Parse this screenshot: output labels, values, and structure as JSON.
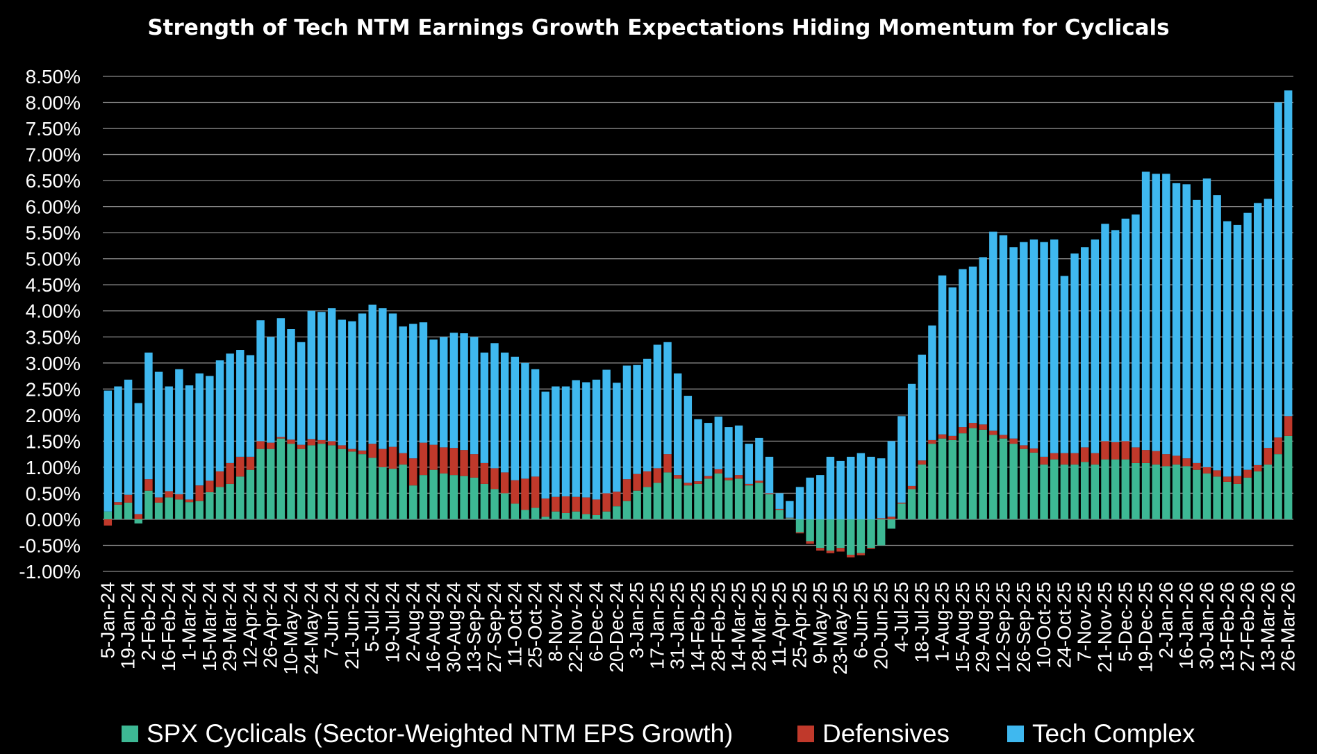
{
  "chart_data": {
    "type": "bar",
    "stacked": true,
    "title": "Strength of Tech NTM Earnings Growth Expectations Hiding Momentum for Cyclicals",
    "xlabel": "",
    "ylabel": "",
    "ylim": [
      -1.0,
      8.5
    ],
    "y_ticks": [
      "8.50%",
      "8.00%",
      "7.50%",
      "7.00%",
      "6.50%",
      "6.00%",
      "5.50%",
      "5.00%",
      "4.50%",
      "4.00%",
      "3.50%",
      "3.00%",
      "2.50%",
      "2.00%",
      "1.50%",
      "1.00%",
      "0.50%",
      "0.00%",
      "-0.50%",
      "-1.00%"
    ],
    "grid": true,
    "legend_position": "bottom",
    "x_tick_labels": [
      "5-Jan-24",
      "19-Jan-24",
      "2-Feb-24",
      "16-Feb-24",
      "1-Mar-24",
      "15-Mar-24",
      "29-Mar-24",
      "12-Apr-24",
      "26-Apr-24",
      "10-May-24",
      "24-May-24",
      "7-Jun-24",
      "21-Jun-24",
      "5-Jul-24",
      "19-Jul-24",
      "2-Aug-24",
      "16-Aug-24",
      "30-Aug-24",
      "13-Sep-24",
      "27-Sep-24",
      "11-Oct-24",
      "25-Oct-24",
      "8-Nov-24",
      "22-Nov-24",
      "6-Dec-24",
      "20-Dec-24",
      "3-Jan-25",
      "17-Jan-25",
      "31-Jan-25",
      "14-Feb-25",
      "28-Feb-25",
      "14-Mar-25",
      "28-Mar-25",
      "11-Apr-25",
      "25-Apr-25",
      "9-May-25",
      "23-May-25",
      "6-Jun-25",
      "20-Jun-25",
      "4-Jul-25",
      "18-Jul-25",
      "1-Aug-25",
      "15-Aug-25",
      "29-Aug-25",
      "12-Sep-25",
      "26-Sep-25",
      "10-Oct-25",
      "24-Oct-25",
      "7-Nov-25",
      "21-Nov-25",
      "5-Dec-25",
      "19-Dec-25",
      "2-Jan-26",
      "16-Jan-26",
      "30-Jan-26",
      "13-Feb-26",
      "27-Feb-26",
      "13-Mar-26",
      "26-Mar-26"
    ],
    "total": [
      2.35,
      2.55,
      2.68,
      2.15,
      3.2,
      2.83,
      2.55,
      2.88,
      2.57,
      2.8,
      2.75,
      3.05,
      3.18,
      3.25,
      3.15,
      3.82,
      3.5,
      3.86,
      3.65,
      3.4,
      4.0,
      3.98,
      4.05,
      3.83,
      3.8,
      3.95,
      4.12,
      4.05,
      3.95,
      3.7,
      3.75,
      3.78,
      3.45,
      3.5,
      3.58,
      3.57,
      3.5,
      3.2,
      3.38,
      3.2,
      3.12,
      3.0,
      2.88,
      2.45,
      2.55,
      2.55,
      2.67,
      2.63,
      2.68,
      2.87,
      2.62,
      2.95,
      2.96,
      3.08,
      3.35,
      3.4,
      2.8,
      2.37,
      1.92,
      1.85,
      1.97,
      1.77,
      1.8,
      1.45,
      1.56,
      1.2,
      0.5,
      0.35,
      0.6,
      0.78,
      0.85,
      1.2,
      1.12,
      1.2,
      1.27,
      1.2,
      1.17,
      1.5,
      1.98,
      2.6,
      3.16,
      3.72,
      4.68,
      4.45,
      4.8,
      4.85,
      5.03,
      5.52,
      5.45,
      5.22,
      5.32,
      5.37,
      5.32,
      5.37,
      4.67,
      5.1,
      5.22,
      5.37,
      5.67,
      5.55,
      5.77,
      5.85,
      6.67,
      6.63,
      6.63,
      6.45,
      6.43,
      6.13,
      6.57,
      6.23,
      5.72,
      5.65,
      5.88,
      6.1,
      5.95,
      8.0,
      8.23
    ],
    "series": [
      {
        "name": "SPX Cyclicals (Sector-Weighted NTM EPS Growth)",
        "color": "#3DB894",
        "values": [
          0.15,
          0.28,
          0.32,
          -0.08,
          0.55,
          0.32,
          0.42,
          0.38,
          0.33,
          0.35,
          0.52,
          0.62,
          0.68,
          0.82,
          0.95,
          1.35,
          1.35,
          1.55,
          1.45,
          1.35,
          1.42,
          1.45,
          1.42,
          1.35,
          1.3,
          1.25,
          1.18,
          1.0,
          0.97,
          1.05,
          0.65,
          0.85,
          0.95,
          0.88,
          0.85,
          0.83,
          0.8,
          0.68,
          0.58,
          0.5,
          0.3,
          0.18,
          0.22,
          0.05,
          0.15,
          0.12,
          0.15,
          0.1,
          0.08,
          0.15,
          0.25,
          0.35,
          0.55,
          0.62,
          0.7,
          0.9,
          0.78,
          0.65,
          0.68,
          0.78,
          0.88,
          0.75,
          0.78,
          0.65,
          0.7,
          0.48,
          0.18,
          0.02,
          -0.25,
          -0.42,
          -0.55,
          -0.6,
          -0.55,
          -0.68,
          -0.65,
          -0.55,
          -0.5,
          -0.18,
          0.3,
          0.58,
          1.05,
          1.45,
          1.55,
          1.52,
          1.65,
          1.75,
          1.72,
          1.62,
          1.55,
          1.45,
          1.35,
          1.28,
          1.05,
          1.15,
          1.05,
          1.05,
          1.1,
          1.05,
          1.15,
          1.15,
          1.15,
          1.08,
          1.08,
          1.05,
          1.02,
          1.05,
          1.02,
          0.95,
          0.88,
          0.82,
          0.72,
          0.68,
          0.8,
          0.92,
          1.05,
          1.25,
          1.6
        ]
      },
      {
        "name": "Defensives",
        "color": "#C0392B",
        "values": [
          -0.12,
          0.05,
          0.15,
          0.1,
          0.22,
          0.1,
          0.12,
          0.1,
          0.05,
          0.3,
          0.22,
          0.3,
          0.4,
          0.38,
          0.25,
          0.15,
          0.12,
          0.03,
          0.08,
          0.08,
          0.12,
          0.07,
          0.08,
          0.07,
          0.05,
          0.07,
          0.27,
          0.35,
          0.42,
          0.22,
          0.52,
          0.62,
          0.48,
          0.5,
          0.52,
          0.5,
          0.45,
          0.4,
          0.4,
          0.4,
          0.45,
          0.6,
          0.6,
          0.35,
          0.28,
          0.32,
          0.28,
          0.32,
          0.3,
          0.35,
          0.28,
          0.42,
          0.32,
          0.3,
          0.28,
          0.35,
          0.07,
          0.05,
          0.05,
          0.05,
          0.08,
          0.05,
          0.07,
          0.03,
          0.04,
          0.02,
          0.02,
          0.01,
          -0.02,
          -0.05,
          -0.05,
          -0.05,
          -0.07,
          -0.05,
          -0.04,
          -0.02,
          0.02,
          0.05,
          0.02,
          0.06,
          0.08,
          0.07,
          0.08,
          0.08,
          0.12,
          0.1,
          0.1,
          0.08,
          0.07,
          0.1,
          0.07,
          0.08,
          0.15,
          0.12,
          0.22,
          0.22,
          0.28,
          0.22,
          0.35,
          0.33,
          0.35,
          0.3,
          0.25,
          0.26,
          0.23,
          0.17,
          0.15,
          0.13,
          0.12,
          0.12,
          0.1,
          0.15,
          0.15,
          0.12,
          0.32,
          0.32,
          0.38
        ]
      },
      {
        "name": "Tech Complex",
        "color": "#3FB8EF",
        "values": [
          2.32,
          2.22,
          2.21,
          2.13,
          2.43,
          2.41,
          2.01,
          2.4,
          2.19,
          2.15,
          2.01,
          2.13,
          2.1,
          2.05,
          1.95,
          2.32,
          2.03,
          2.28,
          2.12,
          1.97,
          2.46,
          2.46,
          2.55,
          2.41,
          2.45,
          2.63,
          2.67,
          2.7,
          2.56,
          2.43,
          2.58,
          2.31,
          2.02,
          2.12,
          2.21,
          2.24,
          2.25,
          2.12,
          2.4,
          2.3,
          2.37,
          2.22,
          2.06,
          2.05,
          2.12,
          2.11,
          2.24,
          2.21,
          2.3,
          2.37,
          2.09,
          2.18,
          2.09,
          2.16,
          2.37,
          2.15,
          1.95,
          1.67,
          1.19,
          1.02,
          1.01,
          0.97,
          0.95,
          0.77,
          0.82,
          0.7,
          0.3,
          0.32,
          0.62,
          0.8,
          0.85,
          1.2,
          1.12,
          1.2,
          1.27,
          1.2,
          1.15,
          1.45,
          1.66,
          1.96,
          2.03,
          2.2,
          3.05,
          2.85,
          3.03,
          3.0,
          3.21,
          3.82,
          3.83,
          3.67,
          3.9,
          4.01,
          4.12,
          4.1,
          3.4,
          3.83,
          3.84,
          4.1,
          4.17,
          4.07,
          4.27,
          4.47,
          5.34,
          5.32,
          5.38,
          5.23,
          5.26,
          5.05,
          5.54,
          5.28,
          4.9,
          4.82,
          4.93,
          5.03,
          4.78,
          6.43,
          6.25
        ]
      }
    ]
  }
}
